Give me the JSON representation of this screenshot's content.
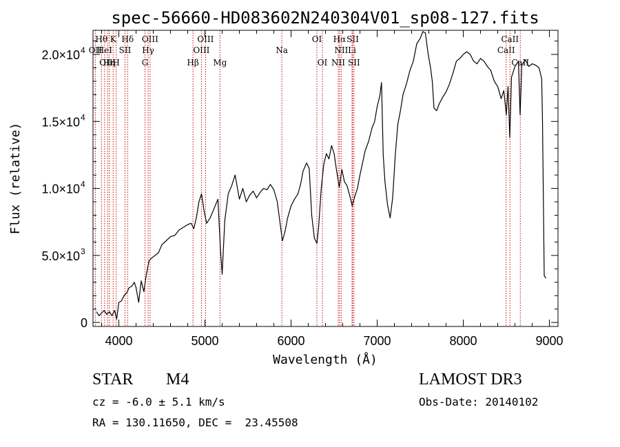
{
  "chart_data": {
    "type": "line",
    "title": "spec-56660-HD083602N240304V01_sp08-127.fits",
    "xlabel": "Wavelength (Å)",
    "ylabel": "Flux (relative)",
    "xlim": [
      3700,
      9100
    ],
    "ylim": [
      -300,
      21800
    ],
    "x_ticks": [
      4000,
      5000,
      6000,
      7000,
      8000,
      9000
    ],
    "y_ticks": [
      {
        "value": 0,
        "mant": "0",
        "exp": ""
      },
      {
        "value": 5000,
        "mant": "5.0×10",
        "exp": "3"
      },
      {
        "value": 10000,
        "mant": "1.0×10",
        "exp": "4"
      },
      {
        "value": 15000,
        "mant": "1.5×10",
        "exp": "4"
      },
      {
        "value": 20000,
        "mant": "2.0×10",
        "exp": "4"
      }
    ],
    "series": [
      {
        "name": "spectrum",
        "color": "#000000",
        "points": [
          [
            3740,
            800
          ],
          [
            3770,
            500
          ],
          [
            3800,
            700
          ],
          [
            3830,
            900
          ],
          [
            3860,
            600
          ],
          [
            3890,
            800
          ],
          [
            3920,
            500
          ],
          [
            3950,
            900
          ],
          [
            3975,
            250
          ],
          [
            4000,
            1500
          ],
          [
            4030,
            1600
          ],
          [
            4060,
            2000
          ],
          [
            4090,
            2200
          ],
          [
            4120,
            2600
          ],
          [
            4150,
            2700
          ],
          [
            4180,
            3000
          ],
          [
            4200,
            2600
          ],
          [
            4230,
            1500
          ],
          [
            4260,
            3100
          ],
          [
            4290,
            2300
          ],
          [
            4320,
            3600
          ],
          [
            4350,
            4600
          ],
          [
            4380,
            4800
          ],
          [
            4420,
            5000
          ],
          [
            4460,
            5200
          ],
          [
            4500,
            5800
          ],
          [
            4550,
            6100
          ],
          [
            4600,
            6400
          ],
          [
            4650,
            6500
          ],
          [
            4700,
            6900
          ],
          [
            4750,
            7100
          ],
          [
            4800,
            7300
          ],
          [
            4840,
            7400
          ],
          [
            4870,
            7000
          ],
          [
            4900,
            7800
          ],
          [
            4930,
            9000
          ],
          [
            4960,
            9600
          ],
          [
            4990,
            8300
          ],
          [
            5020,
            7400
          ],
          [
            5060,
            7800
          ],
          [
            5100,
            8400
          ],
          [
            5150,
            9200
          ],
          [
            5180,
            5500
          ],
          [
            5200,
            3600
          ],
          [
            5230,
            7600
          ],
          [
            5270,
            9600
          ],
          [
            5310,
            10200
          ],
          [
            5350,
            11000
          ],
          [
            5400,
            9200
          ],
          [
            5440,
            10000
          ],
          [
            5480,
            9000
          ],
          [
            5520,
            9500
          ],
          [
            5560,
            9800
          ],
          [
            5600,
            9300
          ],
          [
            5640,
            9700
          ],
          [
            5680,
            10000
          ],
          [
            5720,
            9900
          ],
          [
            5760,
            10300
          ],
          [
            5800,
            9900
          ],
          [
            5840,
            9000
          ],
          [
            5870,
            7500
          ],
          [
            5900,
            6100
          ],
          [
            5930,
            6800
          ],
          [
            5960,
            7800
          ],
          [
            6000,
            8700
          ],
          [
            6040,
            9200
          ],
          [
            6080,
            9600
          ],
          [
            6110,
            10300
          ],
          [
            6140,
            11300
          ],
          [
            6180,
            11900
          ],
          [
            6210,
            11500
          ],
          [
            6240,
            8000
          ],
          [
            6270,
            6300
          ],
          [
            6300,
            5900
          ],
          [
            6320,
            7100
          ],
          [
            6350,
            10000
          ],
          [
            6380,
            11800
          ],
          [
            6410,
            12600
          ],
          [
            6440,
            12200
          ],
          [
            6470,
            13200
          ],
          [
            6500,
            12600
          ],
          [
            6530,
            11300
          ],
          [
            6560,
            10100
          ],
          [
            6590,
            11400
          ],
          [
            6620,
            10500
          ],
          [
            6650,
            10200
          ],
          [
            6680,
            9500
          ],
          [
            6710,
            8700
          ],
          [
            6740,
            9400
          ],
          [
            6770,
            10000
          ],
          [
            6800,
            11000
          ],
          [
            6830,
            11900
          ],
          [
            6860,
            12800
          ],
          [
            6900,
            13500
          ],
          [
            6940,
            14500
          ],
          [
            6970,
            15000
          ],
          [
            7000,
            16100
          ],
          [
            7030,
            16900
          ],
          [
            7050,
            17900
          ],
          [
            7070,
            12500
          ],
          [
            7090,
            10500
          ],
          [
            7120,
            8800
          ],
          [
            7150,
            7800
          ],
          [
            7180,
            9300
          ],
          [
            7210,
            12500
          ],
          [
            7240,
            14800
          ],
          [
            7270,
            15800
          ],
          [
            7300,
            17000
          ],
          [
            7340,
            17800
          ],
          [
            7380,
            18800
          ],
          [
            7420,
            19500
          ],
          [
            7460,
            20800
          ],
          [
            7500,
            21200
          ],
          [
            7530,
            21700
          ],
          [
            7560,
            21600
          ],
          [
            7590,
            20100
          ],
          [
            7620,
            19000
          ],
          [
            7640,
            18000
          ],
          [
            7660,
            16000
          ],
          [
            7690,
            15800
          ],
          [
            7720,
            16300
          ],
          [
            7760,
            16800
          ],
          [
            7800,
            17200
          ],
          [
            7840,
            17800
          ],
          [
            7880,
            18600
          ],
          [
            7920,
            19500
          ],
          [
            7960,
            19700
          ],
          [
            8000,
            20000
          ],
          [
            8040,
            20200
          ],
          [
            8080,
            20000
          ],
          [
            8120,
            19500
          ],
          [
            8160,
            19300
          ],
          [
            8200,
            19700
          ],
          [
            8240,
            19500
          ],
          [
            8280,
            19100
          ],
          [
            8320,
            18800
          ],
          [
            8360,
            18000
          ],
          [
            8400,
            17600
          ],
          [
            8440,
            16700
          ],
          [
            8470,
            17300
          ],
          [
            8500,
            15500
          ],
          [
            8520,
            17600
          ],
          [
            8540,
            13800
          ],
          [
            8560,
            18300
          ],
          [
            8600,
            19100
          ],
          [
            8640,
            19500
          ],
          [
            8660,
            15500
          ],
          [
            8680,
            19200
          ],
          [
            8720,
            19600
          ],
          [
            8760,
            19100
          ],
          [
            8800,
            19300
          ],
          [
            8840,
            19200
          ],
          [
            8880,
            19000
          ],
          [
            8910,
            18200
          ],
          [
            8920,
            15000
          ],
          [
            8940,
            3500
          ],
          [
            8960,
            3300
          ]
        ]
      }
    ],
    "spectral_lines": [
      {
        "label": "Hθ",
        "wavelength": 3798,
        "row": 1
      },
      {
        "label": "OII",
        "wavelength": 3727,
        "row": 2
      },
      {
        "label": "HeI",
        "wavelength": 3835,
        "row": 2
      },
      {
        "label": "OIII",
        "wavelength": 3869,
        "row": 3
      },
      {
        "label": "Hη",
        "wavelength": 3889,
        "row": 3
      },
      {
        "label": "K",
        "wavelength": 3934,
        "row": 1
      },
      {
        "label": "H",
        "wavelength": 3969,
        "row": 3
      },
      {
        "label": "SII",
        "wavelength": 4072,
        "row": 2
      },
      {
        "label": "Hδ",
        "wavelength": 4102,
        "row": 1
      },
      {
        "label": "G",
        "wavelength": 4304,
        "row": 3
      },
      {
        "label": "Hγ",
        "wavelength": 4340,
        "row": 2
      },
      {
        "label": "OIII",
        "wavelength": 4363,
        "row": 1
      },
      {
        "label": "Hβ",
        "wavelength": 4861,
        "row": 3
      },
      {
        "label": "OIII",
        "wavelength": 4959,
        "row": 2
      },
      {
        "label": "OIII",
        "wavelength": 5007,
        "row": 1
      },
      {
        "label": "Mg",
        "wavelength": 5175,
        "row": 3
      },
      {
        "label": "Na",
        "wavelength": 5893,
        "row": 2
      },
      {
        "label": "OI",
        "wavelength": 6300,
        "row": 1
      },
      {
        "label": "OI",
        "wavelength": 6364,
        "row": 3
      },
      {
        "label": "NII",
        "wavelength": 6548,
        "row": 3
      },
      {
        "label": "Hα",
        "wavelength": 6563,
        "row": 1
      },
      {
        "label": "NII",
        "wavelength": 6583,
        "row": 2
      },
      {
        "label": "Li",
        "wavelength": 6708,
        "row": 2
      },
      {
        "label": "SII",
        "wavelength": 6716,
        "row": 1
      },
      {
        "label": "SII",
        "wavelength": 6731,
        "row": 3
      },
      {
        "label": "CaII",
        "wavelength": 8498,
        "row": 2
      },
      {
        "label": "CaII",
        "wavelength": 8542,
        "row": 1
      },
      {
        "label": "CaII",
        "wavelength": 8662,
        "row": 3
      }
    ],
    "line_color": "#cc0000"
  },
  "info": {
    "object_class": "STAR",
    "subclass": "M4",
    "survey": "LAMOST DR3",
    "cz": "cz = -6.0 ± 5.1 km/s",
    "obs_date": "Obs-Date: 20140102",
    "coords": "RA = 130.11650, DEC =  23.45508"
  }
}
